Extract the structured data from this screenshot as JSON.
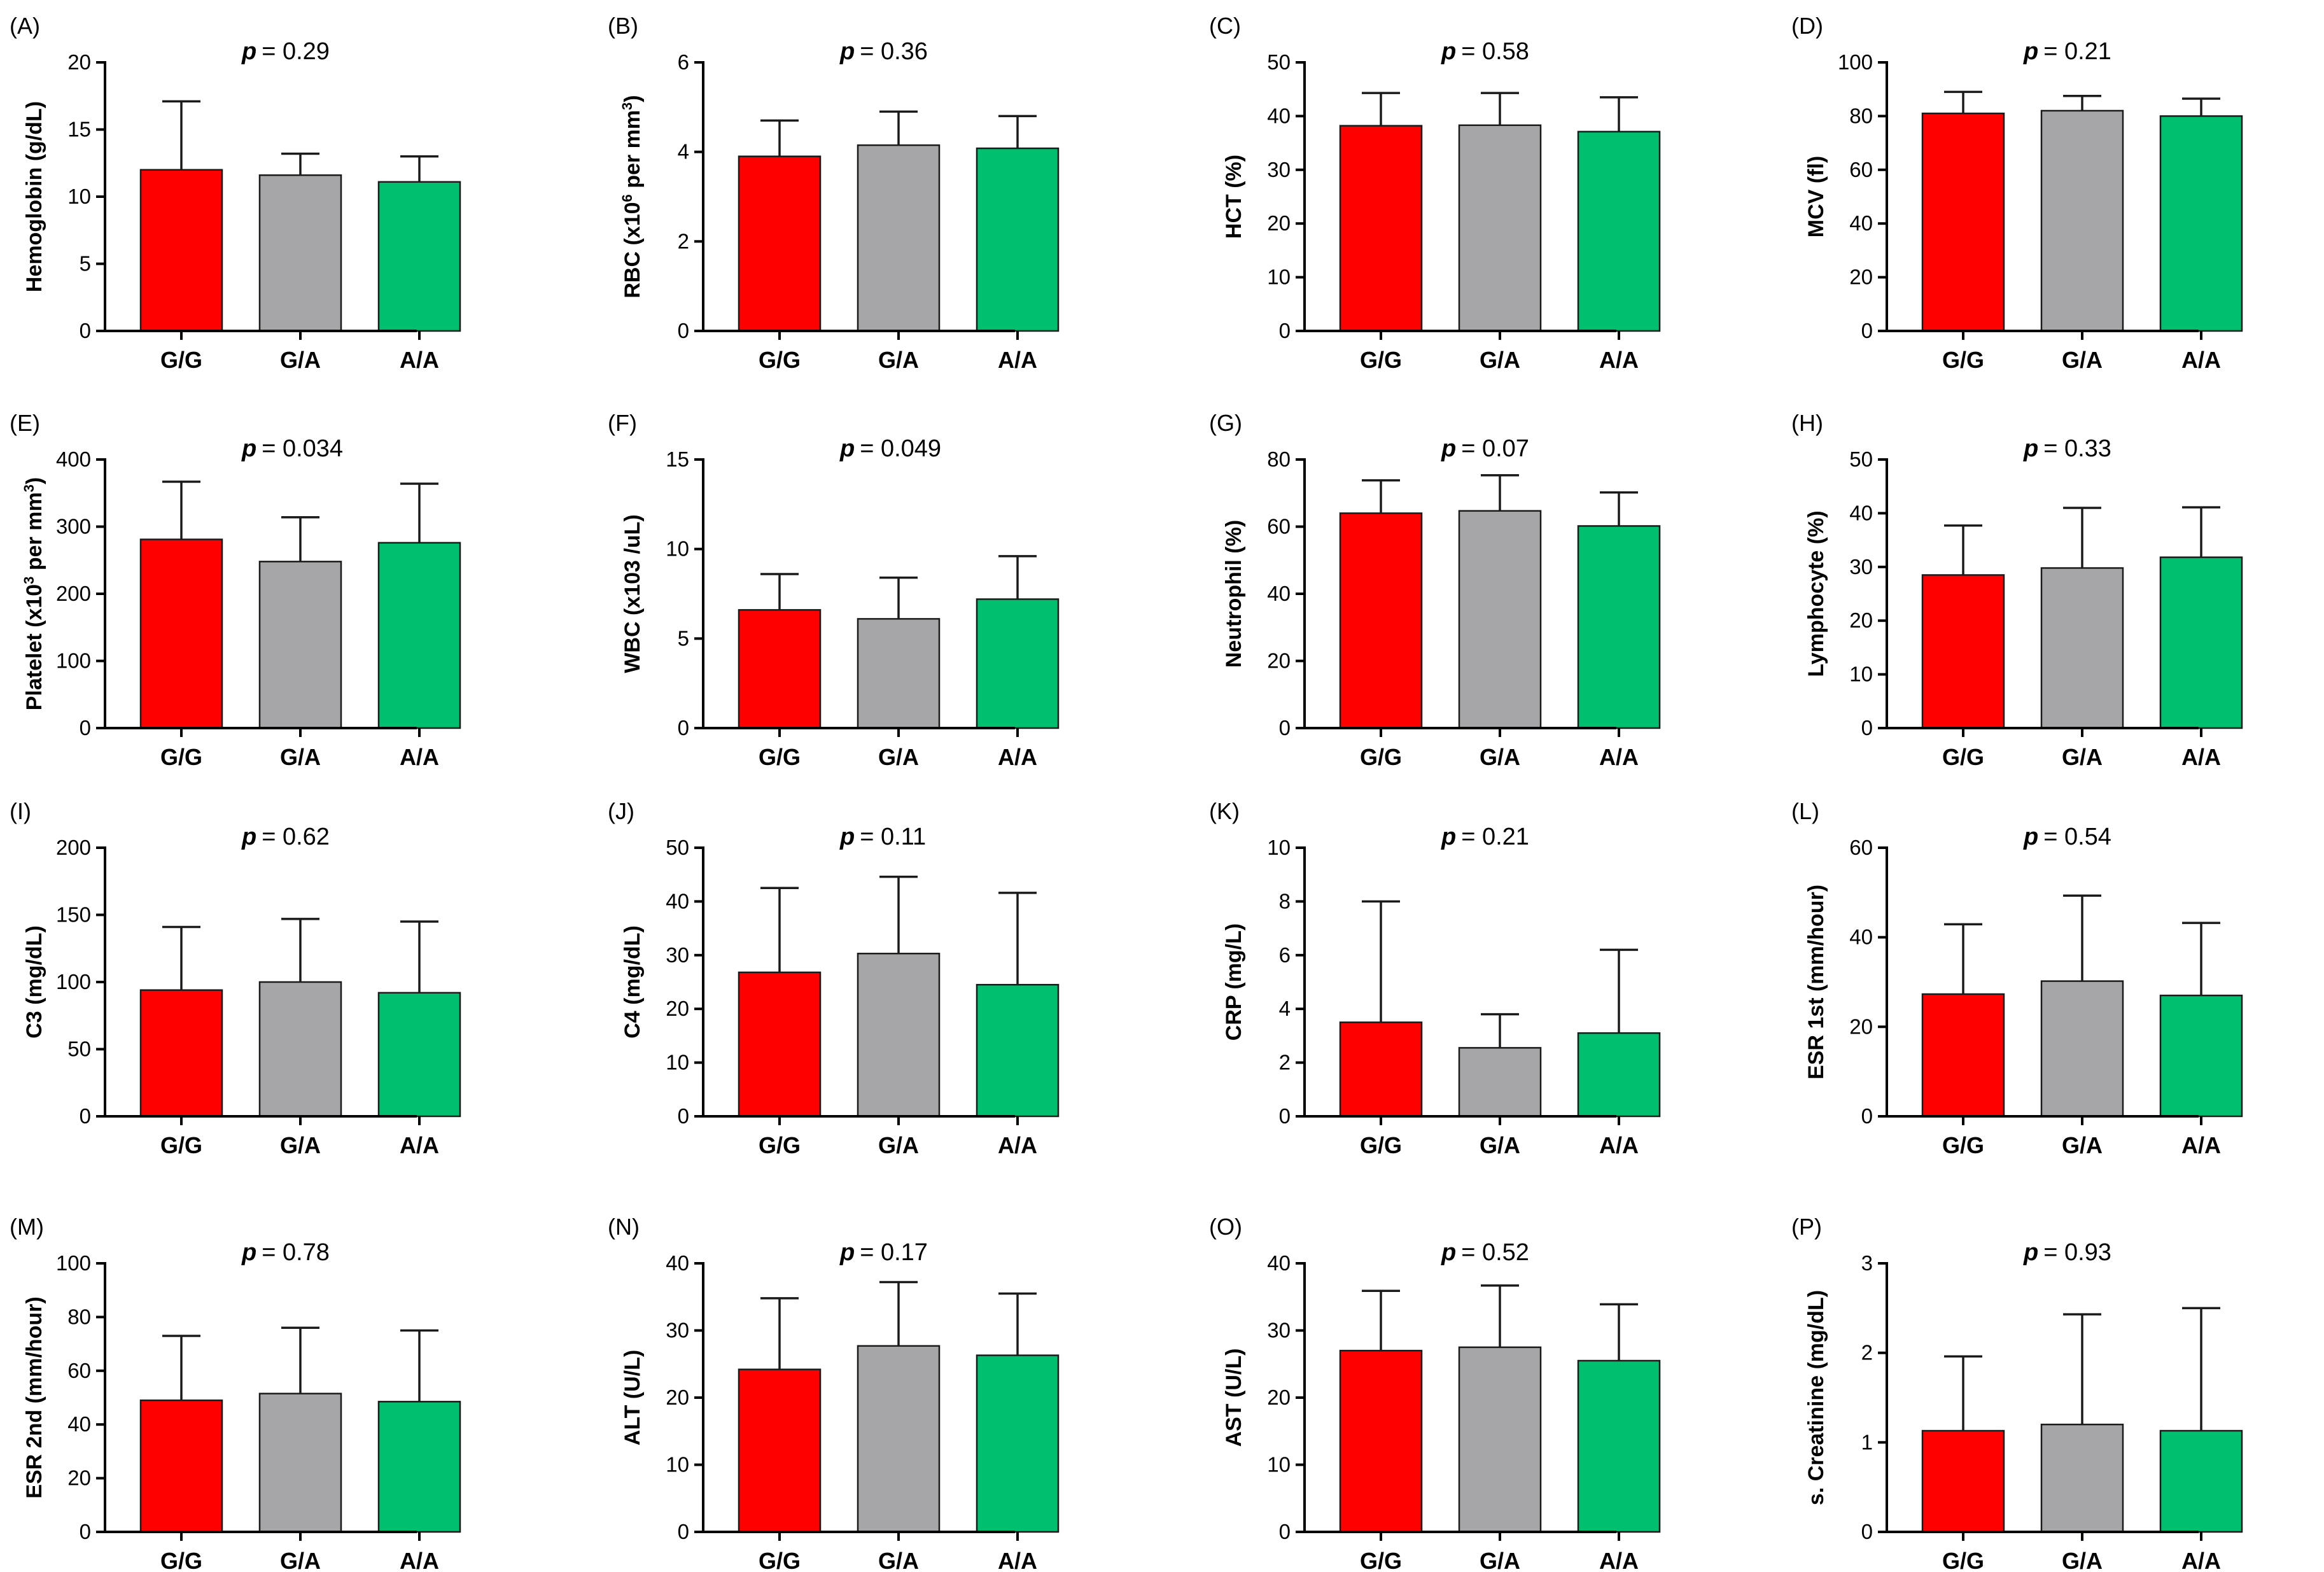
{
  "figure": {
    "colors": {
      "G/G": "#ff0000",
      "G/A": "#a6a6a8",
      "A/A": "#00c070"
    },
    "p_prefix": "p"
  },
  "chart_data": [
    {
      "panel": "(A)",
      "type": "bar",
      "categories": [
        "G/G",
        "G/A",
        "A/A"
      ],
      "values": [
        12.0,
        11.6,
        11.1
      ],
      "errors": [
        17.1,
        13.2,
        13.0
      ],
      "ylabel": "Hemoglobin (g/dL)",
      "ylim": [
        0,
        20
      ],
      "yticks": [
        0,
        5,
        10,
        15,
        20
      ],
      "p_value": "= 0.29"
    },
    {
      "panel": "(B)",
      "type": "bar",
      "categories": [
        "G/G",
        "G/A",
        "A/A"
      ],
      "values": [
        3.9,
        4.15,
        4.08
      ],
      "errors": [
        4.7,
        4.9,
        4.8
      ],
      "ylabel": "RBC (x10",
      "ylabel_sup": "6",
      "ylabel_rest": " per mm",
      "ylabel_sup2": "3",
      "ylabel_end": ")",
      "ylim": [
        0,
        6
      ],
      "yticks": [
        0,
        2,
        4,
        6
      ],
      "p_value": "= 0.36"
    },
    {
      "panel": "(C)",
      "type": "bar",
      "categories": [
        "G/G",
        "G/A",
        "A/A"
      ],
      "values": [
        38.2,
        38.3,
        37.1
      ],
      "errors": [
        44.3,
        44.3,
        43.5
      ],
      "ylabel": "HCT (%)",
      "ylim": [
        0,
        50
      ],
      "yticks": [
        0,
        10,
        20,
        30,
        40,
        50
      ],
      "p_value": "= 0.58"
    },
    {
      "panel": "(D)",
      "type": "bar",
      "categories": [
        "G/G",
        "G/A",
        "A/A"
      ],
      "values": [
        81.0,
        82.0,
        80.0
      ],
      "errors": [
        89.0,
        87.5,
        86.5
      ],
      "ylabel": "MCV (fl)",
      "ylim": [
        0,
        100
      ],
      "yticks": [
        0,
        20,
        40,
        60,
        80,
        100
      ],
      "p_value": "= 0.21"
    },
    {
      "panel": "(E)",
      "type": "bar",
      "categories": [
        "G/G",
        "G/A",
        "A/A"
      ],
      "values": [
        281,
        248,
        276
      ],
      "errors": [
        367,
        314,
        364
      ],
      "ylabel": "Platelet (x10",
      "ylabel_sup": "3",
      "ylabel_rest": " per mm",
      "ylabel_sup2": "3",
      "ylabel_end": ")",
      "ylim": [
        0,
        400
      ],
      "yticks": [
        0,
        100,
        200,
        300,
        400
      ],
      "p_value": "= 0.034"
    },
    {
      "panel": "(F)",
      "type": "bar",
      "categories": [
        "G/G",
        "G/A",
        "A/A"
      ],
      "values": [
        6.6,
        6.1,
        7.2
      ],
      "errors": [
        8.6,
        8.4,
        9.6
      ],
      "ylabel": "WBC (x103 /uL)",
      "ylim": [
        0,
        15
      ],
      "yticks": [
        0,
        5,
        10,
        15
      ],
      "p_value": "= 0.049"
    },
    {
      "panel": "(G)",
      "type": "bar",
      "categories": [
        "G/G",
        "G/A",
        "A/A"
      ],
      "values": [
        64.0,
        64.7,
        60.2
      ],
      "errors": [
        73.8,
        75.3,
        70.2
      ],
      "ylabel": "Neutrophil (%)",
      "ylim": [
        0,
        80
      ],
      "yticks": [
        0,
        20,
        40,
        60,
        80
      ],
      "p_value": "= 0.07"
    },
    {
      "panel": "(H)",
      "type": "bar",
      "categories": [
        "G/G",
        "G/A",
        "A/A"
      ],
      "values": [
        28.5,
        29.8,
        31.8
      ],
      "errors": [
        37.7,
        41.0,
        41.1
      ],
      "ylabel": "Lymphocyte (%)",
      "ylim": [
        0,
        50
      ],
      "yticks": [
        0,
        10,
        20,
        30,
        40,
        50
      ],
      "p_value": "= 0.33"
    },
    {
      "panel": "(I)",
      "type": "bar",
      "categories": [
        "G/G",
        "G/A",
        "A/A"
      ],
      "values": [
        94,
        100,
        92
      ],
      "errors": [
        141,
        147,
        145
      ],
      "ylabel": "C3 (mg/dL)",
      "ylim": [
        0,
        200
      ],
      "yticks": [
        0,
        50,
        100,
        150,
        200
      ],
      "p_value": "= 0.62"
    },
    {
      "panel": "(J)",
      "type": "bar",
      "categories": [
        "G/G",
        "G/A",
        "A/A"
      ],
      "values": [
        26.8,
        30.3,
        24.5
      ],
      "errors": [
        42.5,
        44.6,
        41.6
      ],
      "ylabel": "C4 (mg/dL)",
      "ylim": [
        0,
        50
      ],
      "yticks": [
        0,
        10,
        20,
        30,
        40,
        50
      ],
      "p_value": "= 0.11"
    },
    {
      "panel": "(K)",
      "type": "bar",
      "categories": [
        "G/G",
        "G/A",
        "A/A"
      ],
      "values": [
        3.5,
        2.55,
        3.1
      ],
      "errors": [
        8.0,
        3.8,
        6.2
      ],
      "ylabel": "CRP (mg/L)",
      "ylim": [
        0,
        10
      ],
      "yticks": [
        0,
        2,
        4,
        6,
        8,
        10
      ],
      "p_value": "= 0.21"
    },
    {
      "panel": "(L)",
      "type": "bar",
      "categories": [
        "G/G",
        "G/A",
        "A/A"
      ],
      "values": [
        27.3,
        30.2,
        27.0
      ],
      "errors": [
        42.9,
        49.3,
        43.2
      ],
      "ylabel": "ESR 1st (mm/hour)",
      "ylim": [
        0,
        60
      ],
      "yticks": [
        0,
        20,
        40,
        60
      ],
      "p_value": "= 0.54"
    },
    {
      "panel": "(M)",
      "type": "bar",
      "categories": [
        "G/G",
        "G/A",
        "A/A"
      ],
      "values": [
        49,
        51.5,
        48.5
      ],
      "errors": [
        73,
        76,
        75
      ],
      "ylabel": "ESR 2nd (mm/hour)",
      "ylim": [
        0,
        100
      ],
      "yticks": [
        0,
        20,
        40,
        60,
        80,
        100
      ],
      "p_value": "= 0.78"
    },
    {
      "panel": "(N)",
      "type": "bar",
      "categories": [
        "G/G",
        "G/A",
        "A/A"
      ],
      "values": [
        24.2,
        27.7,
        26.3
      ],
      "errors": [
        34.8,
        37.2,
        35.5
      ],
      "ylabel": "ALT (U/L)",
      "ylim": [
        0,
        40
      ],
      "yticks": [
        0,
        10,
        20,
        30,
        40
      ],
      "p_value": "= 0.17"
    },
    {
      "panel": "(O)",
      "type": "bar",
      "categories": [
        "G/G",
        "G/A",
        "A/A"
      ],
      "values": [
        27.0,
        27.5,
        25.5
      ],
      "errors": [
        35.9,
        36.7,
        33.9
      ],
      "ylabel": "AST (U/L)",
      "ylim": [
        0,
        40
      ],
      "yticks": [
        0,
        10,
        20,
        30,
        40
      ],
      "p_value": "= 0.52"
    },
    {
      "panel": "(P)",
      "type": "bar",
      "categories": [
        "G/G",
        "G/A",
        "A/A"
      ],
      "values": [
        1.13,
        1.2,
        1.13
      ],
      "errors": [
        1.96,
        2.43,
        2.5
      ],
      "ylabel": "s. Creatinine (mg/dL)",
      "ylim": [
        0,
        3
      ],
      "yticks": [
        0,
        1,
        2,
        3
      ],
      "p_value": "= 0.93"
    }
  ]
}
